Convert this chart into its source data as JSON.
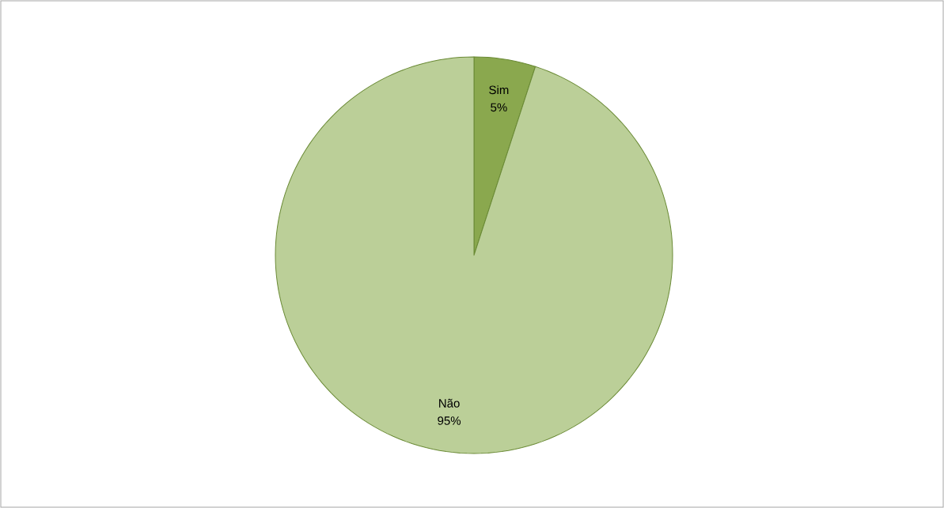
{
  "chart_data": {
    "type": "pie",
    "categories": [
      "Sim",
      "Não"
    ],
    "values": [
      5,
      95
    ],
    "value_labels": [
      "5%",
      "95%"
    ],
    "colors": [
      "#8aa84e",
      "#bbcf98"
    ]
  }
}
